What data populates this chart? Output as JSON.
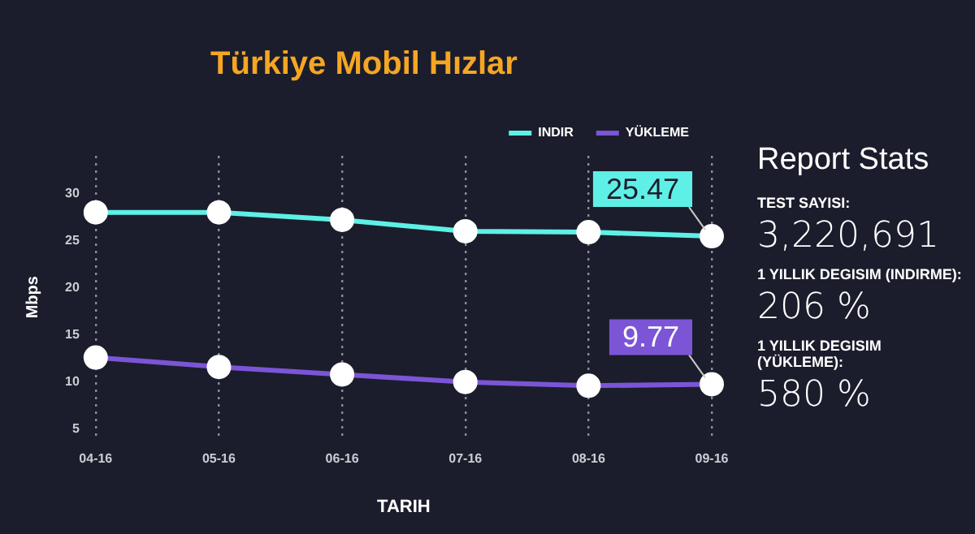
{
  "chart_data": {
    "type": "line",
    "title": "Türkiye Mobil Hızlar",
    "xlabel": "TARIH",
    "ylabel": "Mbps",
    "categories": [
      "04-16",
      "05-16",
      "06-16",
      "07-16",
      "08-16",
      "09-16"
    ],
    "series": [
      {
        "name": "INDIR",
        "color": "#5ef0e6",
        "values": [
          28.0,
          28.0,
          27.2,
          26.0,
          25.9,
          25.47
        ],
        "value_labels": [
          null,
          null,
          null,
          null,
          null,
          "25.47"
        ]
      },
      {
        "name": "YÜKLEME",
        "color": "#7b55d6",
        "values": [
          12.6,
          11.6,
          10.8,
          10.0,
          9.6,
          9.77
        ],
        "value_labels": [
          null,
          null,
          null,
          null,
          null,
          "9.77"
        ]
      }
    ],
    "ylim": [
      4,
      34
    ],
    "yticks": [
      5,
      10,
      15,
      20,
      25,
      30
    ],
    "grid": "x",
    "legend": "top right",
    "marker": "circle",
    "line_style": "solid",
    "annotations": [
      "Report Stats",
      "TEST SAYISI:",
      "3,220,691",
      "1 YILLIK DEGISIM (INDIRME):",
      "206 %",
      "1 YILLIK DEGISIM (YÜKLEME):",
      "580 %"
    ]
  }
}
